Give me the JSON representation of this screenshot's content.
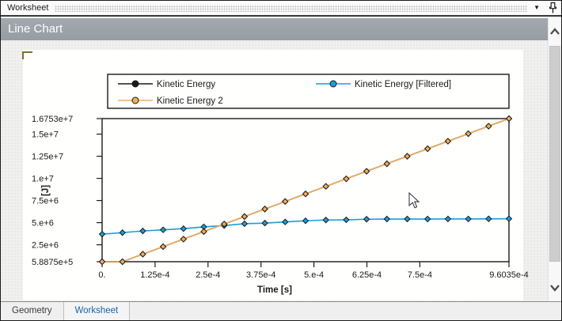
{
  "titlebar": {
    "title": "Worksheet"
  },
  "header": {
    "title": "Line Chart"
  },
  "tabs": [
    {
      "label": "Geometry",
      "active": false
    },
    {
      "label": "Worksheet",
      "active": true
    }
  ],
  "colors": {
    "header_bg": "#9ba2a8",
    "active_tab_text": "#1565ad",
    "series_black": "#1a1a1a",
    "series_blue": "#1b9cd8",
    "series_orange_line": "#f0ae60",
    "series_orange_marker": "#f1af58",
    "selection_bracket": "#7c7228",
    "paper": "#fffffe"
  },
  "chart_data": {
    "type": "line",
    "title": "",
    "xlabel": "Time [s]",
    "ylabel": "[J]",
    "xlim": [
      0,
      0.00096035
    ],
    "ylim": [
      588750.0,
      16753000.0
    ],
    "grid": false,
    "legend_position": "top",
    "x_ticks": [
      {
        "label": "0.",
        "value": 0
      },
      {
        "label": "1.25e-4",
        "value": 0.000125
      },
      {
        "label": "2.5e-4",
        "value": 0.00025
      },
      {
        "label": "3.75e-4",
        "value": 0.000375
      },
      {
        "label": "5.e-4",
        "value": 0.0005
      },
      {
        "label": "6.25e-4",
        "value": 0.000625
      },
      {
        "label": "7.5e-4",
        "value": 0.00075
      },
      {
        "label": "9.6035e-4",
        "value": 0.00096035
      }
    ],
    "y_ticks": [
      {
        "label": "5.8875e+5",
        "value": 588750.0
      },
      {
        "label": "2.5e+6",
        "value": 2500000.0
      },
      {
        "label": "5.e+6",
        "value": 5000000.0
      },
      {
        "label": "7.5e+6",
        "value": 7500000.0
      },
      {
        "label": "1.e+7",
        "value": 10000000.0
      },
      {
        "label": "1.25e+7",
        "value": 12500000.0
      },
      {
        "label": "1.5e+7",
        "value": 15000000.0
      },
      {
        "label": "1.6753e+7",
        "value": 16753000.0
      }
    ],
    "x": [
      0,
      4.80175e-05,
      9.6035e-05,
      0.00014405,
      0.00019207,
      0.00024009,
      0.00028811,
      0.00033612,
      0.00038414,
      0.00043216,
      0.00048018,
      0.00052819,
      0.00057621,
      0.00062423,
      0.00067225,
      0.00072026,
      0.00076828,
      0.0008163,
      0.00086432,
      0.00091233,
      0.00096035
    ],
    "series": [
      {
        "name": "Kinetic Energy",
        "line_color": "#1a1a1a",
        "marker_color": "#1a1a1a",
        "legend_row": 0,
        "legend_col": 0,
        "values": [
          588750.0,
          589000.0,
          1440000.0,
          2290000.0,
          3140000.0,
          3990000.0,
          4840000.0,
          5690000.0,
          6540000.0,
          7390000.0,
          8250000.0,
          9100000.0,
          9950000.0,
          10800000.0,
          11650000.0,
          12500000.0,
          13350000.0,
          14200000.0,
          15050000.0,
          15900000.0,
          16753000.0
        ]
      },
      {
        "name": "Kinetic Energy [Filtered]",
        "line_color": "#1b9cd8",
        "marker_color": "#1b9cd8",
        "legend_row": 0,
        "legend_col": 1,
        "values": [
          3700000.0,
          3870000.0,
          4060000.0,
          4190000.0,
          4320000.0,
          4520000.0,
          4670000.0,
          4880000.0,
          4950000.0,
          5080000.0,
          5210000.0,
          5300000.0,
          5320000.0,
          5390000.0,
          5410000.0,
          5410000.0,
          5410000.0,
          5420000.0,
          5420000.0,
          5430000.0,
          5440000.0
        ]
      },
      {
        "name": "Kinetic Energy 2",
        "line_color": "#f0ae60",
        "marker_color": "#f1af58",
        "legend_row": 1,
        "legend_col": 0,
        "values": [
          588750.0,
          589000.0,
          1440000.0,
          2290000.0,
          3140000.0,
          3990000.0,
          4840000.0,
          5690000.0,
          6540000.0,
          7390000.0,
          8250000.0,
          9100000.0,
          9950000.0,
          10800000.0,
          11650000.0,
          12500000.0,
          13350000.0,
          14200000.0,
          15050000.0,
          15900000.0,
          16753000.0
        ]
      }
    ]
  }
}
